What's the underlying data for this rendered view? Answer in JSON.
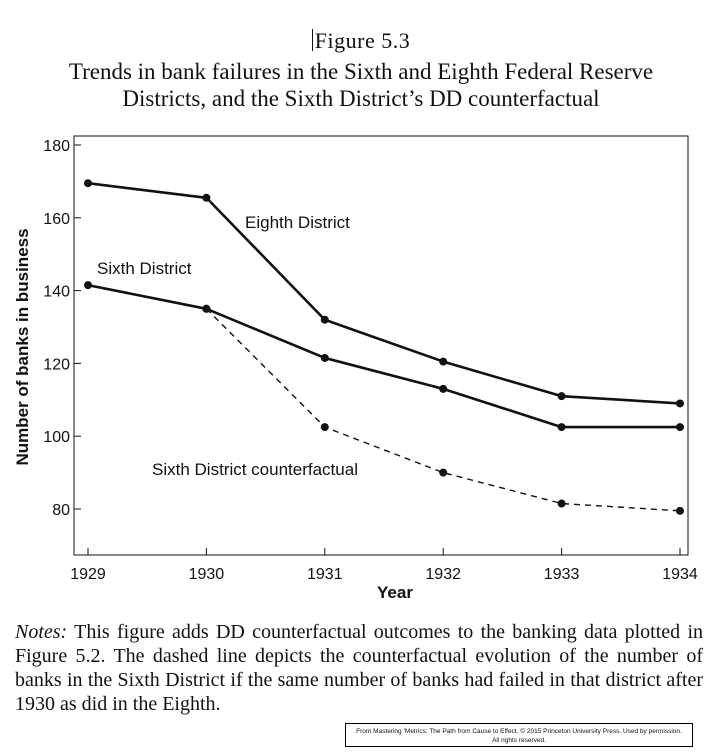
{
  "figure_label": "Figure 5.3",
  "title_line1": "Trends in bank failures in the Sixth and Eighth Federal Reserve",
  "title_line2": "Districts, and the Sixth District’s DD counterfactual",
  "chart_data": {
    "type": "line",
    "xlabel": "Year",
    "ylabel": "Number of banks in business",
    "x": [
      1929,
      1930,
      1931,
      1932,
      1933,
      1934
    ],
    "ylim": [
      75,
      182
    ],
    "yticks": [
      80,
      100,
      120,
      140,
      160,
      180
    ],
    "grid": false,
    "series": [
      {
        "name": "Eighth District",
        "style": "solid",
        "x": [
          1929,
          1930,
          1931,
          1932,
          1933,
          1934
        ],
        "values": [
          169.5,
          165.5,
          132,
          120.5,
          111,
          109
        ]
      },
      {
        "name": "Sixth District",
        "style": "solid",
        "x": [
          1929,
          1930,
          1931,
          1932,
          1933,
          1934
        ],
        "values": [
          141.5,
          135,
          121.5,
          113,
          102.5,
          102.5
        ]
      },
      {
        "name": "Sixth District counterfactual",
        "style": "dashed",
        "x": [
          1930,
          1931,
          1932,
          1933,
          1934
        ],
        "values": [
          135,
          102.5,
          90,
          81.5,
          79.5
        ]
      }
    ]
  },
  "notes_label": "Notes:",
  "notes_text": "This figure adds DD counterfactual outcomes to the banking data plotted in Figure 5.2. The dashed line depicts the counterfactual evolution of the number of banks in the Sixth District if the same number of banks had failed in that district after 1930 as did in the Eighth.",
  "credit_line1": "From Mastering ’Metrics: The Path from Cause to Effect. © 2015 Princeton University Press. Used by permission.",
  "credit_line2": "All rights reserved.",
  "colors": {
    "ink": "#111111",
    "background": "#ffffff"
  }
}
